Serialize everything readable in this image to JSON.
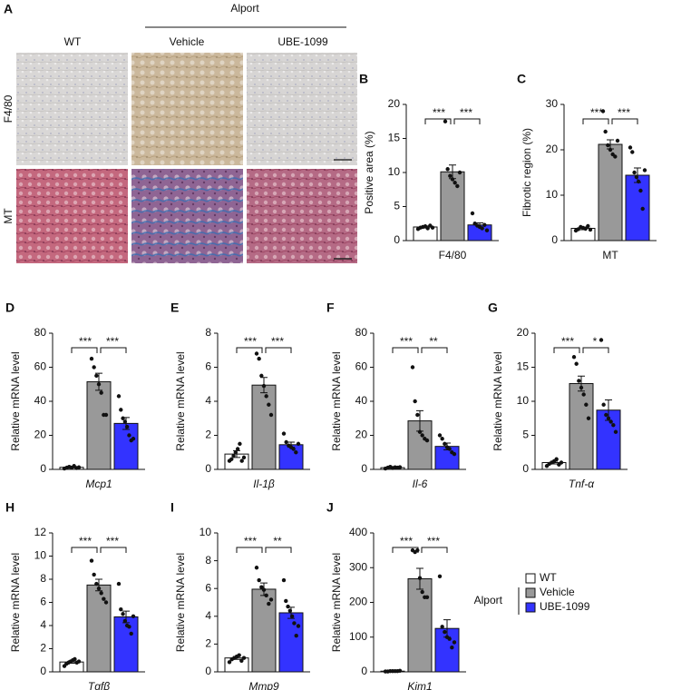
{
  "panel_a": {
    "letter": "A",
    "group": "Alport",
    "columns": [
      "WT",
      "Vehicle",
      "UBE-1099"
    ],
    "rows": [
      "F4/80",
      "MT"
    ]
  },
  "legend": {
    "group": "Alport",
    "series": [
      {
        "name": "WT",
        "color": "#ffffff"
      },
      {
        "name": "Vehicle",
        "color": "#999999"
      },
      {
        "name": "UBE-1099",
        "color": "#3333ff"
      }
    ]
  },
  "chart_data": [
    {
      "type": "bar",
      "panel": "B",
      "ylabel": "Positive area (%)",
      "xlabel": "F4/80",
      "ylim": [
        0,
        20
      ],
      "yticks": [
        0,
        5,
        10,
        15,
        20
      ],
      "values": [
        2.0,
        10.1,
        2.3
      ],
      "errors": [
        0.15,
        1.0,
        0.3
      ],
      "points": [
        [
          1.7,
          1.9,
          2.0,
          2.1,
          1.8,
          2.2,
          1.9
        ],
        [
          17.5,
          10.5,
          9.5,
          9,
          8.5,
          8,
          10
        ],
        [
          4,
          2.5,
          2.2,
          2,
          1.8,
          2.3,
          1.5
        ]
      ],
      "annotations": [
        "***",
        "***"
      ]
    },
    {
      "type": "bar",
      "panel": "C",
      "ylabel": "Fibrotic region (%)",
      "xlabel": "MT",
      "ylim": [
        0,
        30
      ],
      "yticks": [
        0,
        10,
        20,
        30
      ],
      "values": [
        2.7,
        21.2,
        14.4
      ],
      "errors": [
        0.3,
        1.0,
        1.6
      ],
      "points": [
        [
          2.2,
          2.5,
          3,
          2.8,
          2.6,
          3.2,
          2.4
        ],
        [
          28.5,
          24,
          21,
          20,
          19,
          18.5,
          22
        ],
        [
          20.5,
          19.5,
          15,
          14,
          13,
          11,
          7,
          15.5
        ]
      ],
      "annotations": [
        "***",
        "***"
      ]
    },
    {
      "type": "bar",
      "panel": "D",
      "ylabel": "Relative mRNA level",
      "xlabel": "Mcp1",
      "italic": true,
      "ylim": [
        0,
        80
      ],
      "yticks": [
        0,
        20,
        40,
        60,
        80
      ],
      "values": [
        1.2,
        51.5,
        27
      ],
      "errors": [
        0.3,
        5,
        3.5
      ],
      "points": [
        [
          0.5,
          1,
          1.5,
          1,
          2,
          0.8,
          1.2
        ],
        [
          65,
          60,
          55,
          50,
          45,
          32,
          32
        ],
        [
          43,
          35,
          30,
          28,
          25,
          20,
          17,
          18
        ]
      ],
      "annotations": [
        "***",
        "***"
      ]
    },
    {
      "type": "bar",
      "panel": "E",
      "ylabel": "Relative mRNA level",
      "xlabel": "Il-1β",
      "italic": true,
      "ylim": [
        0,
        8
      ],
      "yticks": [
        0,
        2,
        4,
        6,
        8
      ],
      "values": [
        0.9,
        4.95,
        1.45
      ],
      "errors": [
        0.2,
        0.45,
        0.15
      ],
      "points": [
        [
          0.5,
          0.6,
          0.8,
          1,
          1.2,
          1.5,
          0.5,
          0.7
        ],
        [
          6.8,
          6.5,
          5.5,
          4.9,
          4.3,
          3.8,
          3.2
        ],
        [
          2.1,
          1.6,
          1.4,
          1.3,
          1.2,
          1,
          1.5
        ]
      ],
      "annotations": [
        "***",
        "***"
      ]
    },
    {
      "type": "bar",
      "panel": "F",
      "ylabel": "Relative mRNA level",
      "xlabel": "Il-6",
      "italic": true,
      "ylim": [
        0,
        80
      ],
      "yticks": [
        0,
        20,
        40,
        60,
        80
      ],
      "values": [
        1,
        28.5,
        13.5
      ],
      "errors": [
        0.3,
        6,
        2
      ],
      "points": [
        [
          0.5,
          1,
          1.5,
          0.8,
          1.2,
          1,
          1.3
        ],
        [
          60,
          40,
          32,
          22,
          20,
          18,
          17
        ],
        [
          20,
          18,
          15,
          13,
          12,
          10,
          9
        ]
      ],
      "annotations": [
        "***",
        "**"
      ]
    },
    {
      "type": "bar",
      "panel": "G",
      "ylabel": "Relative mRNA level",
      "xlabel": "Tnf-α",
      "italic": true,
      "ylim": [
        0,
        20
      ],
      "yticks": [
        0,
        5,
        10,
        15,
        20
      ],
      "values": [
        1,
        12.6,
        8.7
      ],
      "errors": [
        0.2,
        1.1,
        1.5
      ],
      "points": [
        [
          0.5,
          0.8,
          1,
          1.2,
          1.5,
          0.7,
          1
        ],
        [
          16.5,
          15.5,
          13,
          12,
          11,
          9.5,
          7.5
        ],
        [
          19,
          9.5,
          8,
          7.5,
          7,
          6.5,
          5.5
        ]
      ],
      "annotations": [
        "***",
        "*"
      ]
    },
    {
      "type": "bar",
      "panel": "H",
      "ylabel": "Relative mRNA level",
      "xlabel": "Tgfβ",
      "italic": true,
      "ylim": [
        0,
        12
      ],
      "yticks": [
        0,
        2,
        4,
        6,
        8,
        10,
        12
      ],
      "values": [
        0.85,
        7.5,
        4.75
      ],
      "errors": [
        0.1,
        0.5,
        0.5
      ],
      "points": [
        [
          0.5,
          0.7,
          0.8,
          0.9,
          1,
          1.1,
          0.8,
          0.9
        ],
        [
          9.6,
          8.4,
          7.6,
          7.2,
          6.8,
          6.3,
          6
        ],
        [
          7.6,
          5.4,
          5,
          4.4,
          4,
          3.9,
          3.3,
          4.8
        ]
      ],
      "annotations": [
        "***",
        "***"
      ]
    },
    {
      "type": "bar",
      "panel": "I",
      "ylabel": "Relative mRNA level",
      "xlabel": "Mmp9",
      "italic": true,
      "ylim": [
        0,
        10
      ],
      "yticks": [
        0,
        2,
        4,
        6,
        8,
        10
      ],
      "values": [
        1,
        5.95,
        4.25
      ],
      "errors": [
        0.1,
        0.45,
        0.4
      ],
      "points": [
        [
          0.7,
          0.9,
          1,
          1.1,
          1.2,
          0.8,
          1
        ],
        [
          7.5,
          6.6,
          6.1,
          5.9,
          5.5,
          4.9,
          5.2
        ],
        [
          6.6,
          5.1,
          4.7,
          4.4,
          4,
          3.5,
          2.6,
          3.3
        ]
      ],
      "annotations": [
        "***",
        "**"
      ]
    },
    {
      "type": "bar",
      "panel": "J",
      "ylabel": "Relative mRNA level",
      "xlabel": "Kim1",
      "italic": true,
      "ylim": [
        0,
        400
      ],
      "yticks": [
        0,
        100,
        200,
        300,
        400
      ],
      "values": [
        2,
        268,
        125
      ],
      "errors": [
        0.5,
        30,
        25
      ],
      "points": [
        [
          1,
          1,
          2,
          2,
          2,
          2,
          3
        ],
        [
          350,
          345,
          350,
          270,
          230,
          215,
          215
        ],
        [
          275,
          130,
          115,
          100,
          95,
          70,
          85
        ]
      ],
      "annotations": [
        "***",
        "***"
      ]
    }
  ]
}
